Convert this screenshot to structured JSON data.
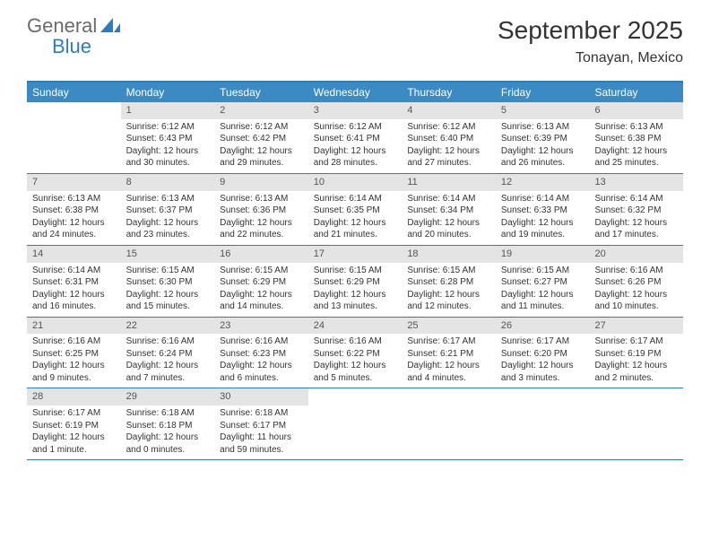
{
  "logo": {
    "text1": "General",
    "text2": "Blue"
  },
  "title": "September 2025",
  "location": "Tonayan, Mexico",
  "colors": {
    "header_bg": "#3b8ac4",
    "border": "#2e7cc0",
    "daynum_bg": "#e4e4e4",
    "text": "#333333"
  },
  "weekdays": [
    "Sunday",
    "Monday",
    "Tuesday",
    "Wednesday",
    "Thursday",
    "Friday",
    "Saturday"
  ],
  "weeks": [
    [
      null,
      {
        "n": "1",
        "sr": "Sunrise: 6:12 AM",
        "ss": "Sunset: 6:43 PM",
        "dl": "Daylight: 12 hours and 30 minutes."
      },
      {
        "n": "2",
        "sr": "Sunrise: 6:12 AM",
        "ss": "Sunset: 6:42 PM",
        "dl": "Daylight: 12 hours and 29 minutes."
      },
      {
        "n": "3",
        "sr": "Sunrise: 6:12 AM",
        "ss": "Sunset: 6:41 PM",
        "dl": "Daylight: 12 hours and 28 minutes."
      },
      {
        "n": "4",
        "sr": "Sunrise: 6:12 AM",
        "ss": "Sunset: 6:40 PM",
        "dl": "Daylight: 12 hours and 27 minutes."
      },
      {
        "n": "5",
        "sr": "Sunrise: 6:13 AM",
        "ss": "Sunset: 6:39 PM",
        "dl": "Daylight: 12 hours and 26 minutes."
      },
      {
        "n": "6",
        "sr": "Sunrise: 6:13 AM",
        "ss": "Sunset: 6:38 PM",
        "dl": "Daylight: 12 hours and 25 minutes."
      }
    ],
    [
      {
        "n": "7",
        "sr": "Sunrise: 6:13 AM",
        "ss": "Sunset: 6:38 PM",
        "dl": "Daylight: 12 hours and 24 minutes."
      },
      {
        "n": "8",
        "sr": "Sunrise: 6:13 AM",
        "ss": "Sunset: 6:37 PM",
        "dl": "Daylight: 12 hours and 23 minutes."
      },
      {
        "n": "9",
        "sr": "Sunrise: 6:13 AM",
        "ss": "Sunset: 6:36 PM",
        "dl": "Daylight: 12 hours and 22 minutes."
      },
      {
        "n": "10",
        "sr": "Sunrise: 6:14 AM",
        "ss": "Sunset: 6:35 PM",
        "dl": "Daylight: 12 hours and 21 minutes."
      },
      {
        "n": "11",
        "sr": "Sunrise: 6:14 AM",
        "ss": "Sunset: 6:34 PM",
        "dl": "Daylight: 12 hours and 20 minutes."
      },
      {
        "n": "12",
        "sr": "Sunrise: 6:14 AM",
        "ss": "Sunset: 6:33 PM",
        "dl": "Daylight: 12 hours and 19 minutes."
      },
      {
        "n": "13",
        "sr": "Sunrise: 6:14 AM",
        "ss": "Sunset: 6:32 PM",
        "dl": "Daylight: 12 hours and 17 minutes."
      }
    ],
    [
      {
        "n": "14",
        "sr": "Sunrise: 6:14 AM",
        "ss": "Sunset: 6:31 PM",
        "dl": "Daylight: 12 hours and 16 minutes."
      },
      {
        "n": "15",
        "sr": "Sunrise: 6:15 AM",
        "ss": "Sunset: 6:30 PM",
        "dl": "Daylight: 12 hours and 15 minutes."
      },
      {
        "n": "16",
        "sr": "Sunrise: 6:15 AM",
        "ss": "Sunset: 6:29 PM",
        "dl": "Daylight: 12 hours and 14 minutes."
      },
      {
        "n": "17",
        "sr": "Sunrise: 6:15 AM",
        "ss": "Sunset: 6:29 PM",
        "dl": "Daylight: 12 hours and 13 minutes."
      },
      {
        "n": "18",
        "sr": "Sunrise: 6:15 AM",
        "ss": "Sunset: 6:28 PM",
        "dl": "Daylight: 12 hours and 12 minutes."
      },
      {
        "n": "19",
        "sr": "Sunrise: 6:15 AM",
        "ss": "Sunset: 6:27 PM",
        "dl": "Daylight: 12 hours and 11 minutes."
      },
      {
        "n": "20",
        "sr": "Sunrise: 6:16 AM",
        "ss": "Sunset: 6:26 PM",
        "dl": "Daylight: 12 hours and 10 minutes."
      }
    ],
    [
      {
        "n": "21",
        "sr": "Sunrise: 6:16 AM",
        "ss": "Sunset: 6:25 PM",
        "dl": "Daylight: 12 hours and 9 minutes."
      },
      {
        "n": "22",
        "sr": "Sunrise: 6:16 AM",
        "ss": "Sunset: 6:24 PM",
        "dl": "Daylight: 12 hours and 7 minutes."
      },
      {
        "n": "23",
        "sr": "Sunrise: 6:16 AM",
        "ss": "Sunset: 6:23 PM",
        "dl": "Daylight: 12 hours and 6 minutes."
      },
      {
        "n": "24",
        "sr": "Sunrise: 6:16 AM",
        "ss": "Sunset: 6:22 PM",
        "dl": "Daylight: 12 hours and 5 minutes."
      },
      {
        "n": "25",
        "sr": "Sunrise: 6:17 AM",
        "ss": "Sunset: 6:21 PM",
        "dl": "Daylight: 12 hours and 4 minutes."
      },
      {
        "n": "26",
        "sr": "Sunrise: 6:17 AM",
        "ss": "Sunset: 6:20 PM",
        "dl": "Daylight: 12 hours and 3 minutes."
      },
      {
        "n": "27",
        "sr": "Sunrise: 6:17 AM",
        "ss": "Sunset: 6:19 PM",
        "dl": "Daylight: 12 hours and 2 minutes."
      }
    ],
    [
      {
        "n": "28",
        "sr": "Sunrise: 6:17 AM",
        "ss": "Sunset: 6:19 PM",
        "dl": "Daylight: 12 hours and 1 minute."
      },
      {
        "n": "29",
        "sr": "Sunrise: 6:18 AM",
        "ss": "Sunset: 6:18 PM",
        "dl": "Daylight: 12 hours and 0 minutes."
      },
      {
        "n": "30",
        "sr": "Sunrise: 6:18 AM",
        "ss": "Sunset: 6:17 PM",
        "dl": "Daylight: 11 hours and 59 minutes."
      },
      null,
      null,
      null,
      null
    ]
  ]
}
